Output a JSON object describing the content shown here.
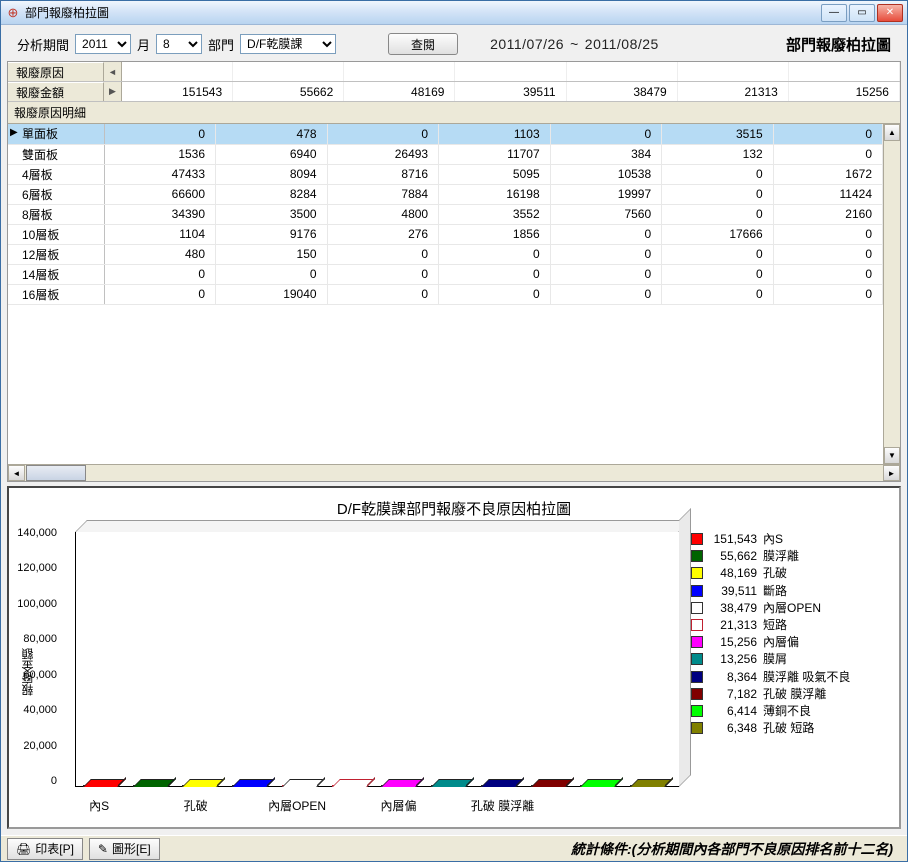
{
  "window": {
    "title": "部門報廢柏拉圖"
  },
  "filter": {
    "period_label": "分析期間",
    "year": "2011",
    "month_label": "月",
    "month": "8",
    "dept_label": "部門",
    "dept": "D/F乾膜課",
    "query_btn": "查閱",
    "date_from": "2011/07/26",
    "date_to": "2011/08/25",
    "heading": "部門報廢柏拉圖"
  },
  "summary": {
    "row1_label": "報廢原因",
    "row2_label": "報廢金額",
    "amounts": [
      "151543",
      "55662",
      "48169",
      "39511",
      "38479",
      "21313",
      "15256"
    ]
  },
  "detail_header": "報廢原因明細",
  "table": {
    "rows": [
      {
        "label": "單面板",
        "selected": true,
        "v": [
          "0",
          "478",
          "0",
          "1103",
          "0",
          "3515",
          "0"
        ]
      },
      {
        "label": "雙面板",
        "selected": false,
        "v": [
          "1536",
          "6940",
          "26493",
          "11707",
          "384",
          "132",
          "0"
        ]
      },
      {
        "label": "4層板",
        "selected": false,
        "v": [
          "47433",
          "8094",
          "8716",
          "5095",
          "10538",
          "0",
          "1672"
        ]
      },
      {
        "label": "6層板",
        "selected": false,
        "v": [
          "66600",
          "8284",
          "7884",
          "16198",
          "19997",
          "0",
          "11424"
        ]
      },
      {
        "label": "8層板",
        "selected": false,
        "v": [
          "34390",
          "3500",
          "4800",
          "3552",
          "7560",
          "0",
          "2160"
        ]
      },
      {
        "label": "10層板",
        "selected": false,
        "v": [
          "1104",
          "9176",
          "276",
          "1856",
          "0",
          "17666",
          "0"
        ]
      },
      {
        "label": "12層板",
        "selected": false,
        "v": [
          "480",
          "150",
          "0",
          "0",
          "0",
          "0",
          "0"
        ]
      },
      {
        "label": "14層板",
        "selected": false,
        "v": [
          "0",
          "0",
          "0",
          "0",
          "0",
          "0",
          "0"
        ]
      },
      {
        "label": "16層板",
        "selected": false,
        "v": [
          "0",
          "19040",
          "0",
          "0",
          "0",
          "0",
          "0"
        ]
      }
    ]
  },
  "chart": {
    "title": "D/F乾膜課部門報廢不良原因柏拉圖",
    "type": "bar-3d",
    "ylabel": "報廢金額",
    "ymax": 160000,
    "ytick_step": 20000,
    "yticks": [
      "0",
      "20,000",
      "40,000",
      "60,000",
      "80,000",
      "100,000",
      "120,000",
      "140,000"
    ],
    "background_color": "#ffffff",
    "series": [
      {
        "value": 151543,
        "label": "內S",
        "color": "#ff0000",
        "fill": "#ff0000"
      },
      {
        "value": 55662,
        "label": "膜浮離",
        "color": "#006400",
        "fill": "#006400"
      },
      {
        "value": 48169,
        "label": "孔破",
        "color": "#ffff00",
        "fill": "#ffff00"
      },
      {
        "value": 39511,
        "label": "斷路",
        "color": "#0000ff",
        "fill": "#0000ff"
      },
      {
        "value": 38479,
        "label": "內層OPEN",
        "color": "#ffffff",
        "fill": "#ffffff"
      },
      {
        "value": 21313,
        "label": "短路",
        "color": "#c02030",
        "fill": "#ffffff"
      },
      {
        "value": 15256,
        "label": "內層偏",
        "color": "#ff00ff",
        "fill": "#ff00ff"
      },
      {
        "value": 13256,
        "label": "膜屑",
        "color": "#008b8b",
        "fill": "#008b8b"
      },
      {
        "value": 8364,
        "label": "膜浮離 吸氣不良",
        "color": "#000080",
        "fill": "#000080"
      },
      {
        "value": 7182,
        "label": "孔破 膜浮離",
        "color": "#800000",
        "fill": "#800000"
      },
      {
        "value": 6414,
        "label": "薄銅不良",
        "color": "#00ff00",
        "fill": "#00ff00"
      },
      {
        "value": 6348,
        "label": "孔破 短路",
        "color": "#808000",
        "fill": "#808000"
      }
    ],
    "xlabels": [
      "內S",
      "",
      "孔破",
      "",
      "內層OPEN",
      "",
      "內層偏",
      "",
      "孔破 膜浮離",
      "",
      "",
      ""
    ],
    "legend_values": [
      "151,543",
      "55,662",
      "48,169",
      "39,511",
      "38,479",
      "21,313",
      "15,256",
      "13,256",
      "8,364",
      "7,182",
      "6,414",
      "6,348"
    ]
  },
  "status": {
    "print_btn": "印表[P]",
    "chart_btn": "圖形[E]",
    "condition": "統計條件:(分析期間內各部門不良原因排名前十二名)"
  }
}
